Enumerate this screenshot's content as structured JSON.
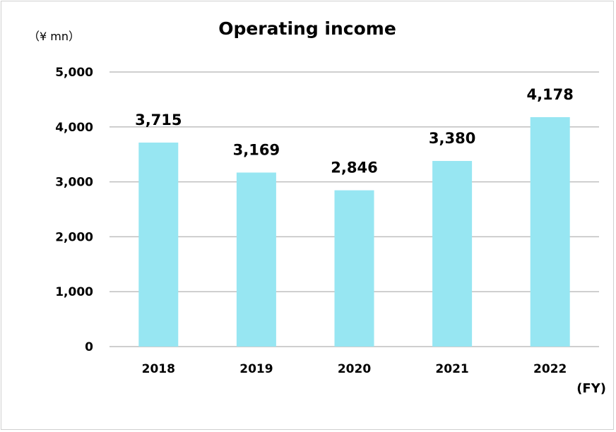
{
  "chart_data": {
    "type": "bar",
    "title": "Operating income",
    "unit_label": "（¥ mn）",
    "x_unit_label": "(FY)",
    "categories": [
      "2018",
      "2019",
      "2020",
      "2021",
      "2022"
    ],
    "values": [
      3715,
      3169,
      2846,
      3380,
      4178
    ],
    "value_labels": [
      "3,715",
      "3,169",
      "2,846",
      "3,380",
      "4,178"
    ],
    "ylim": [
      0,
      5000
    ],
    "yticks": [
      0,
      1000,
      2000,
      3000,
      4000,
      5000
    ],
    "ytick_labels": [
      "0",
      "1,000",
      "2,000",
      "3,000",
      "4,000",
      "5,000"
    ],
    "grid": true,
    "bar_color": "#97E6F2",
    "grid_color": "#BFBFBF"
  }
}
